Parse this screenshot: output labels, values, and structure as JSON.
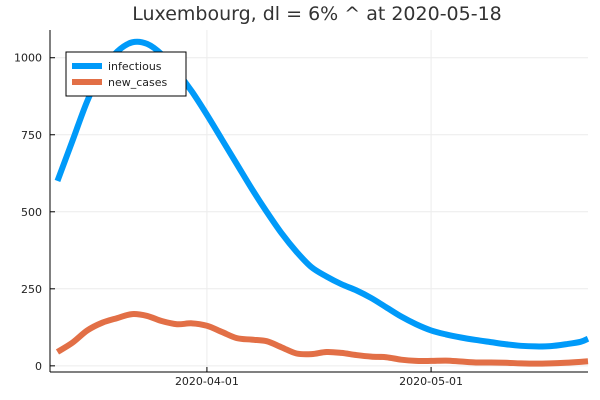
{
  "chart_data": {
    "type": "line",
    "title": "Luxembourg,  dl = 6% ^ at 2020-05-18",
    "xlabel": "",
    "ylabel": "",
    "x_axis": {
      "type": "date",
      "range": [
        "2020-03-11",
        "2020-05-22"
      ],
      "ticks": [
        "2020-04-01",
        "2020-05-01"
      ],
      "tick_labels": [
        "2020-04-01",
        "2020-05-01"
      ]
    },
    "ylim": [
      -20,
      1090
    ],
    "y_ticks": [
      0,
      250,
      500,
      750,
      1000
    ],
    "y_tick_labels": [
      "0",
      "250",
      "500",
      "750",
      "1000"
    ],
    "grid": true,
    "legend_position": "top-left",
    "series": [
      {
        "name": "infectious",
        "color": "#009af9",
        "points": [
          [
            "2020-03-12",
            600
          ],
          [
            "2020-03-14",
            730
          ],
          [
            "2020-03-16",
            860
          ],
          [
            "2020-03-18",
            960
          ],
          [
            "2020-03-20",
            1020
          ],
          [
            "2020-03-22",
            1050
          ],
          [
            "2020-03-24",
            1045
          ],
          [
            "2020-03-26",
            1010
          ],
          [
            "2020-03-28",
            955
          ],
          [
            "2020-03-30",
            890
          ],
          [
            "2020-04-01",
            815
          ],
          [
            "2020-04-03",
            735
          ],
          [
            "2020-04-05",
            655
          ],
          [
            "2020-04-07",
            575
          ],
          [
            "2020-04-09",
            500
          ],
          [
            "2020-04-11",
            430
          ],
          [
            "2020-04-13",
            370
          ],
          [
            "2020-04-15",
            320
          ],
          [
            "2020-04-17",
            290
          ],
          [
            "2020-04-19",
            265
          ],
          [
            "2020-04-21",
            245
          ],
          [
            "2020-04-23",
            220
          ],
          [
            "2020-04-25",
            190
          ],
          [
            "2020-04-27",
            160
          ],
          [
            "2020-04-29",
            135
          ],
          [
            "2020-05-01",
            115
          ],
          [
            "2020-05-03",
            102
          ],
          [
            "2020-05-05",
            92
          ],
          [
            "2020-05-07",
            84
          ],
          [
            "2020-05-09",
            77
          ],
          [
            "2020-05-11",
            70
          ],
          [
            "2020-05-13",
            65
          ],
          [
            "2020-05-15",
            63
          ],
          [
            "2020-05-17",
            64
          ],
          [
            "2020-05-19",
            70
          ],
          [
            "2020-05-21",
            78
          ],
          [
            "2020-05-22",
            88
          ]
        ]
      },
      {
        "name": "new_cases",
        "color": "#e26f46",
        "points": [
          [
            "2020-03-12",
            45
          ],
          [
            "2020-03-14",
            75
          ],
          [
            "2020-03-16",
            115
          ],
          [
            "2020-03-18",
            140
          ],
          [
            "2020-03-20",
            155
          ],
          [
            "2020-03-22",
            168
          ],
          [
            "2020-03-24",
            162
          ],
          [
            "2020-03-26",
            145
          ],
          [
            "2020-03-28",
            135
          ],
          [
            "2020-03-30",
            138
          ],
          [
            "2020-04-01",
            130
          ],
          [
            "2020-04-03",
            110
          ],
          [
            "2020-04-05",
            90
          ],
          [
            "2020-04-07",
            85
          ],
          [
            "2020-04-09",
            80
          ],
          [
            "2020-04-11",
            60
          ],
          [
            "2020-04-13",
            40
          ],
          [
            "2020-04-15",
            38
          ],
          [
            "2020-04-17",
            45
          ],
          [
            "2020-04-19",
            42
          ],
          [
            "2020-04-21",
            35
          ],
          [
            "2020-04-23",
            30
          ],
          [
            "2020-04-25",
            28
          ],
          [
            "2020-04-27",
            20
          ],
          [
            "2020-04-29",
            16
          ],
          [
            "2020-05-01",
            16
          ],
          [
            "2020-05-03",
            17
          ],
          [
            "2020-05-05",
            14
          ],
          [
            "2020-05-07",
            11
          ],
          [
            "2020-05-09",
            11
          ],
          [
            "2020-05-11",
            10
          ],
          [
            "2020-05-13",
            8
          ],
          [
            "2020-05-15",
            7
          ],
          [
            "2020-05-17",
            8
          ],
          [
            "2020-05-19",
            10
          ],
          [
            "2020-05-21",
            13
          ],
          [
            "2020-05-22",
            15
          ]
        ]
      }
    ]
  }
}
